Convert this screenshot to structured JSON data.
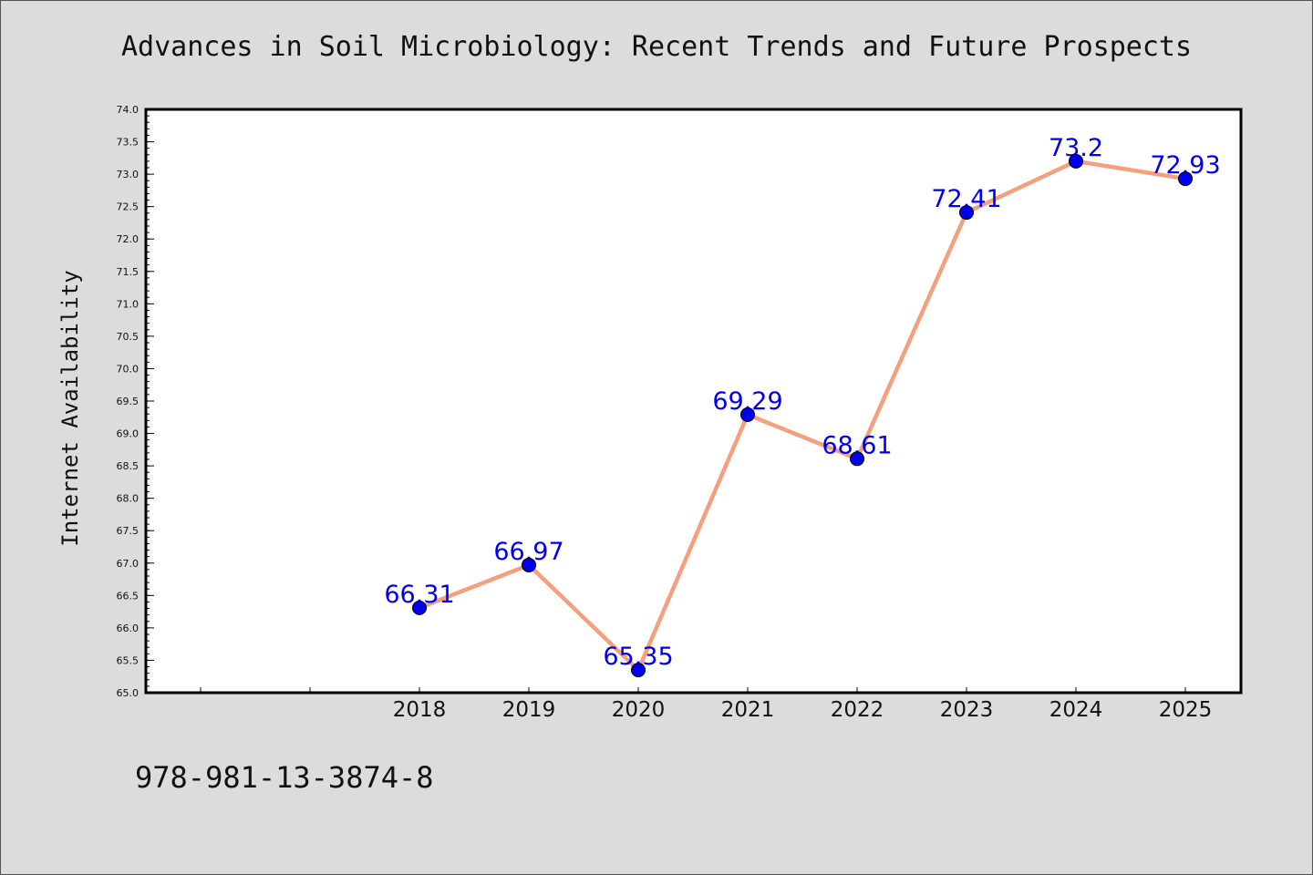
{
  "chart_data": {
    "type": "line",
    "title": "Advances in Soil Microbiology: Recent Trends and Future Prospects",
    "xlabel": "",
    "ylabel": "Internet Availability",
    "x": [
      "2018",
      "2019",
      "2020",
      "2021",
      "2022",
      "2023",
      "2024",
      "2025"
    ],
    "series": [
      {
        "values": [
          66.31,
          66.97,
          65.35,
          69.29,
          68.61,
          72.41,
          73.2,
          72.93
        ],
        "data_labels": [
          "66.31",
          "66.97",
          "65.35",
          "69.29",
          "68.61",
          "72.41",
          "73.2",
          "72.93"
        ],
        "line_color": "#f4a07f",
        "marker_color": "#0000ee"
      }
    ],
    "ylim": [
      65.0,
      74.0
    ],
    "y_ticks": [
      "65.0",
      "65.5",
      "66.0",
      "66.5",
      "67.0",
      "67.5",
      "68.0",
      "68.5",
      "69.0",
      "69.5",
      "70.0",
      "70.5",
      "71.0",
      "71.5",
      "72.0",
      "72.5",
      "73.0",
      "73.5",
      "74.0"
    ],
    "grid": false,
    "legend": "none"
  },
  "footer": {
    "isbn": "978-981-13-3874-8"
  },
  "colors": {
    "background": "#dcdcdc",
    "plot_area": "#ffffff",
    "label_text": "#0000ee"
  }
}
